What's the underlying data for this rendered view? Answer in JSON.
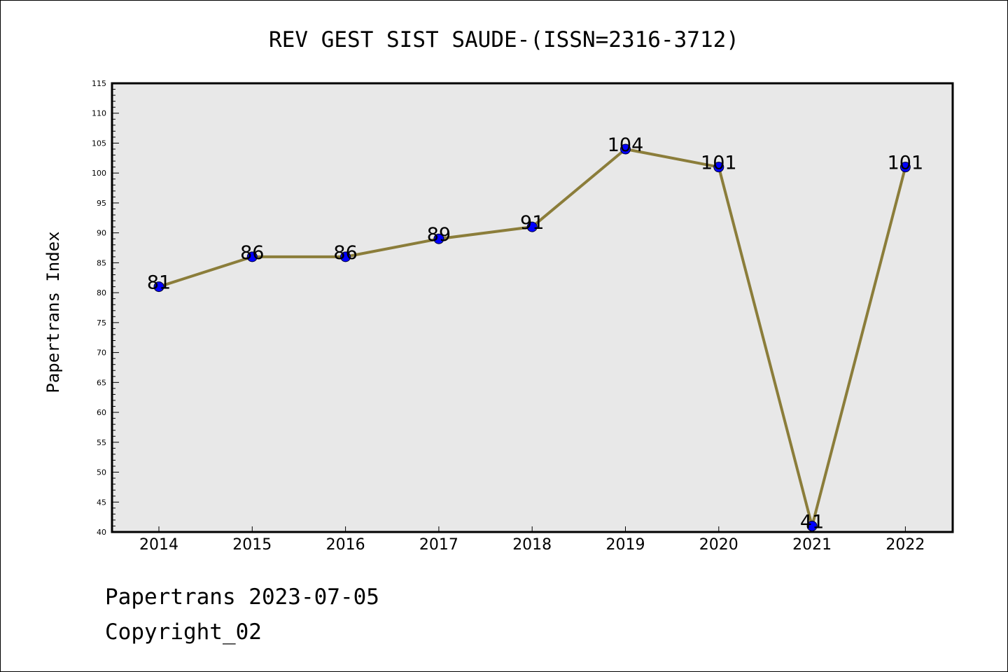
{
  "chart_data": {
    "type": "line",
    "title": "REV GEST SIST SAUDE-(ISSN=2316-3712)",
    "ylabel": "Papertrans Index",
    "xlabel": "",
    "categories": [
      "2014",
      "2015",
      "2016",
      "2017",
      "2018",
      "2019",
      "2020",
      "2021",
      "2022"
    ],
    "series": [
      {
        "values": [
          81,
          86,
          86,
          89,
          91,
          104,
          101,
          41,
          101
        ],
        "data_labels": [
          "81",
          "86",
          "86",
          "89",
          "91",
          "104",
          "101",
          "41",
          "101"
        ]
      }
    ],
    "ylim": [
      40,
      115
    ],
    "y_major_ticks": [
      "40",
      "45",
      "50",
      "55",
      "60",
      "65",
      "70",
      "75",
      "80",
      "85",
      "90",
      "95",
      "100",
      "105",
      "110",
      "115"
    ],
    "grid": false,
    "colors": {
      "line": "#8B7D3A",
      "marker": "#0000FF",
      "plot_background": "#E8E8E8"
    }
  },
  "footer": {
    "line1": "Papertrans 2023-07-05",
    "line2": "Copyright_02"
  }
}
